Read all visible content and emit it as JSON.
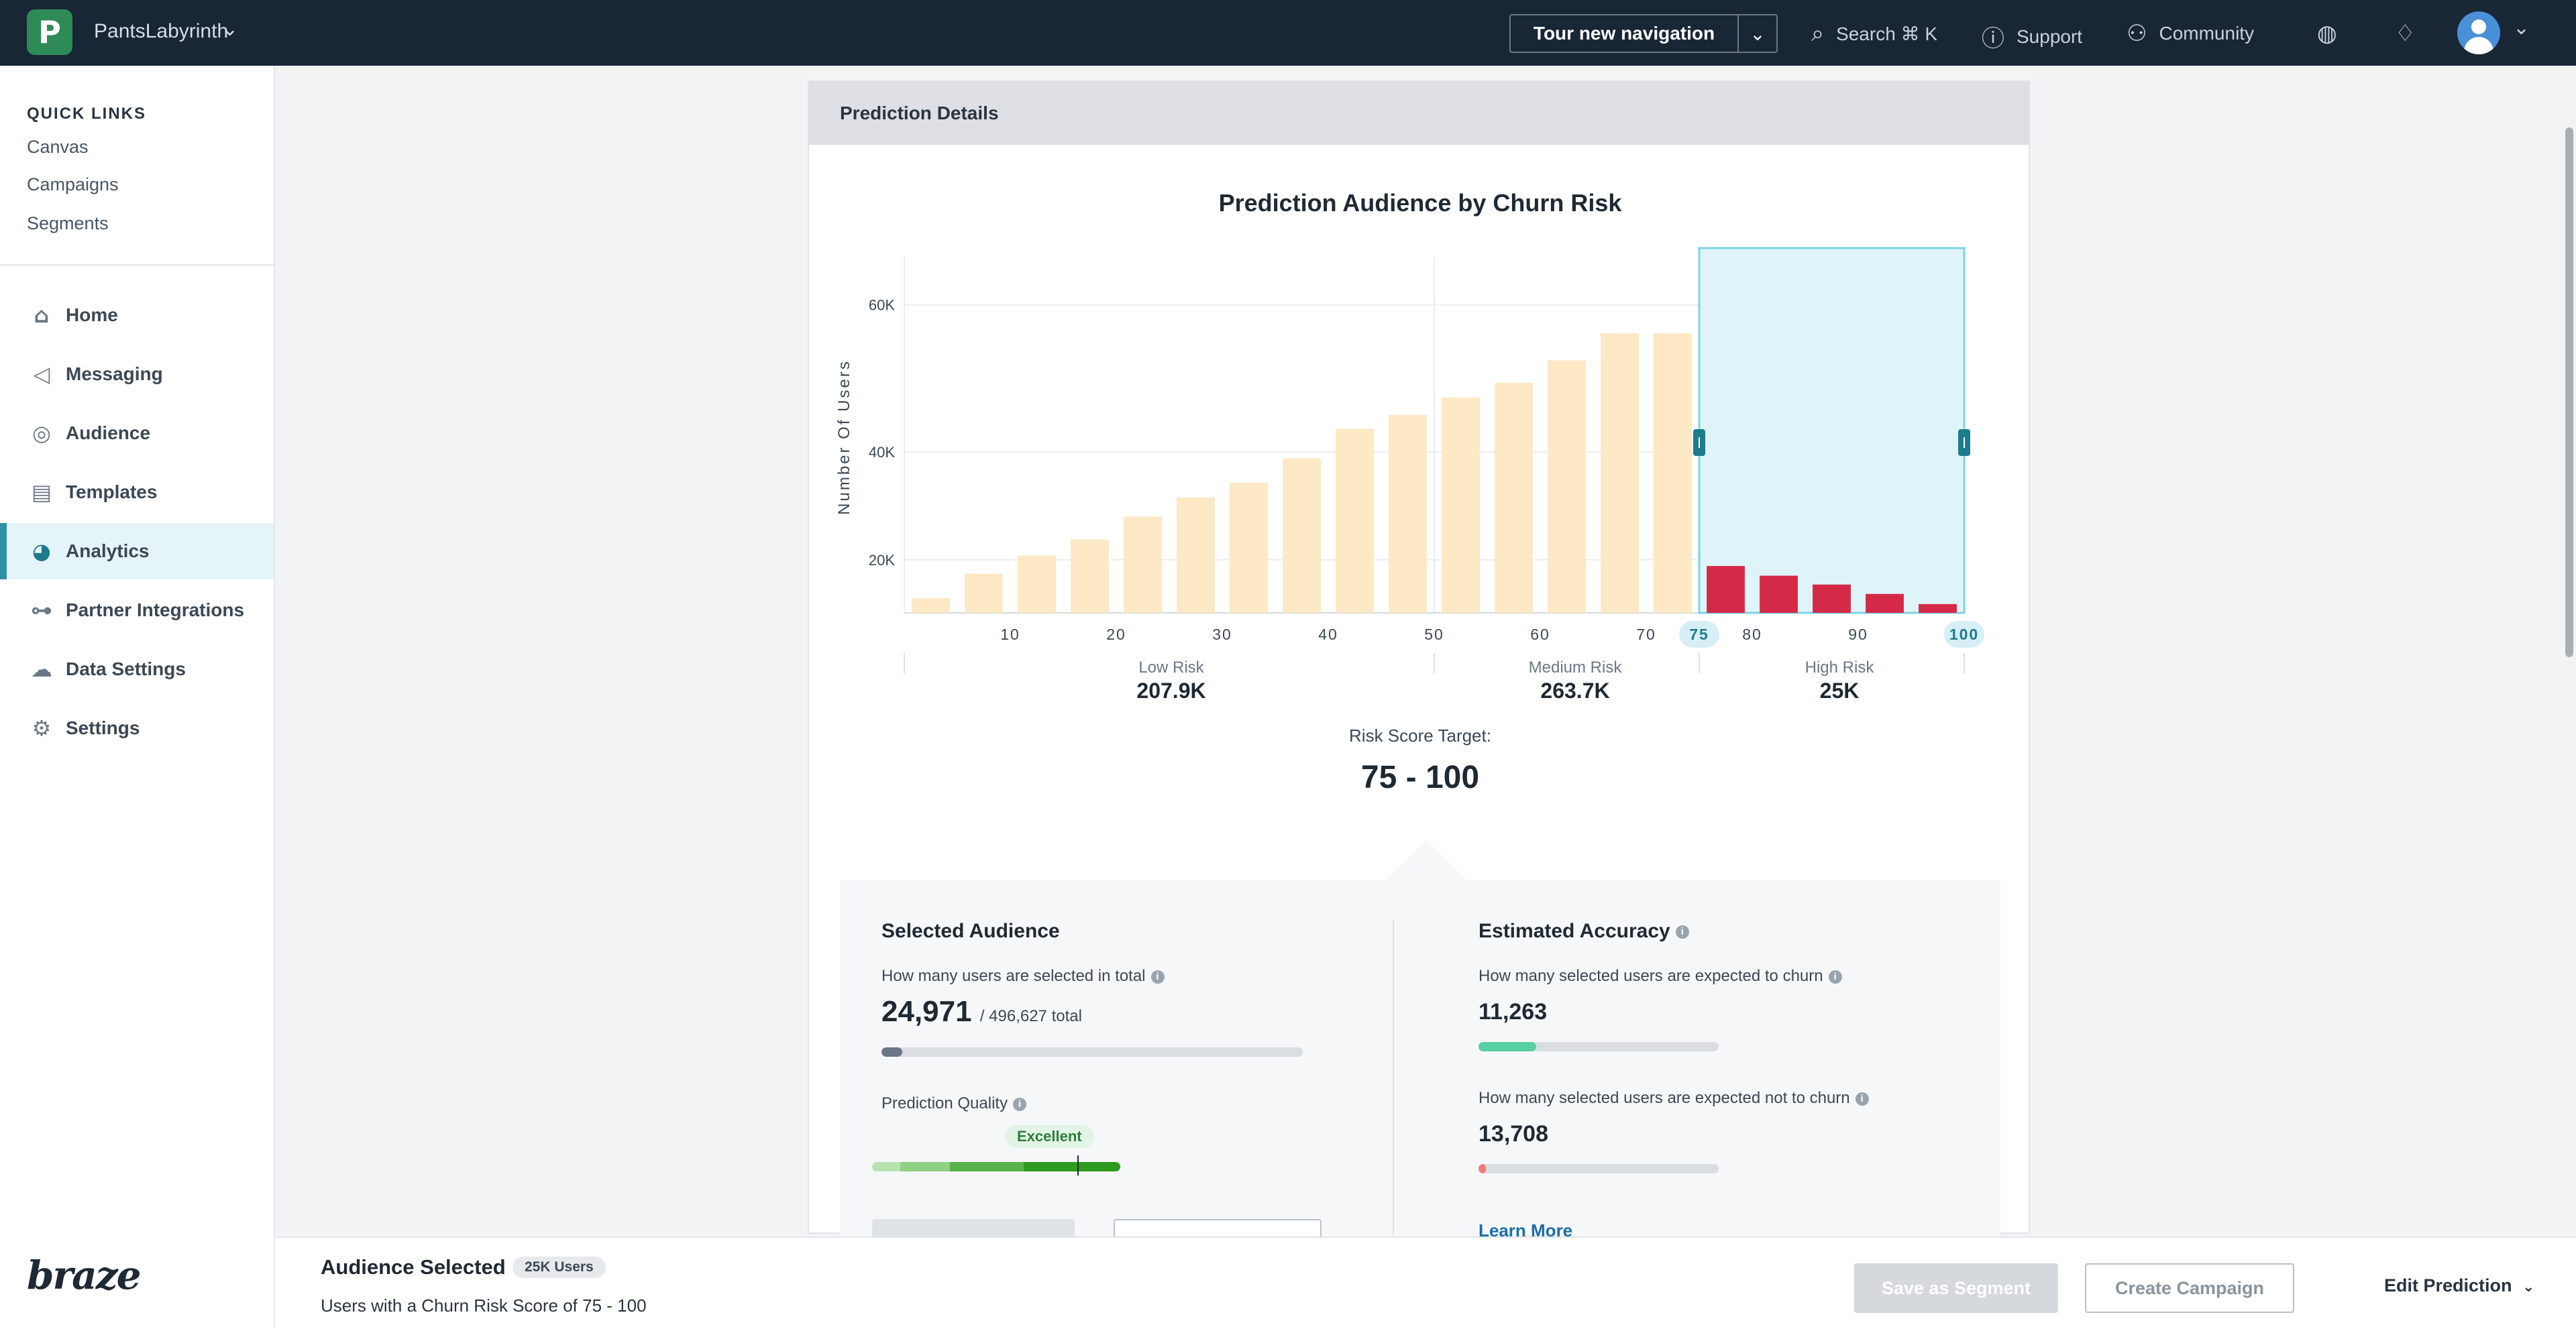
{
  "topnav": {
    "logo_letter": "P",
    "workspace": "PantsLabyrinth",
    "tour_label": "Tour new navigation",
    "search_label": "Search ⌘ K",
    "support_label": "Support",
    "community_label": "Community"
  },
  "sidebar": {
    "quick_links_title": "QUICK LINKS",
    "quick_links": [
      "Canvas",
      "Campaigns",
      "Segments"
    ],
    "items": [
      {
        "label": "Home",
        "icon": "home-icon"
      },
      {
        "label": "Messaging",
        "icon": "megaphone-icon"
      },
      {
        "label": "Audience",
        "icon": "audience-icon"
      },
      {
        "label": "Templates",
        "icon": "templates-icon"
      },
      {
        "label": "Analytics",
        "icon": "pie-chart-icon",
        "active": true
      },
      {
        "label": "Partner Integrations",
        "icon": "integrations-icon"
      },
      {
        "label": "Data Settings",
        "icon": "cloud-icon"
      },
      {
        "label": "Settings",
        "icon": "gear-icon"
      }
    ],
    "brand": "braze"
  },
  "card": {
    "header": "Prediction Details"
  },
  "chart_data": {
    "type": "bar",
    "title": "Prediction Audience by Churn Risk",
    "ylabel": "Number Of Users",
    "xlabel": "",
    "x_ticks": [
      "10",
      "20",
      "30",
      "40",
      "50",
      "60",
      "70",
      "75",
      "80",
      "90",
      "100"
    ],
    "y_ticks": [
      "20K",
      "40K",
      "60K"
    ],
    "ylim": [
      0,
      65000
    ],
    "bins": [
      5,
      10,
      15,
      20,
      25,
      30,
      35,
      40,
      45,
      50,
      55,
      60,
      65,
      70,
      75,
      80,
      85,
      90,
      95,
      100
    ],
    "values": [
      9000,
      16500,
      21000,
      24500,
      29000,
      32500,
      35000,
      39000,
      43500,
      45500,
      48000,
      50000,
      53000,
      56500,
      56500,
      18500,
      16000,
      13500,
      10500,
      6500
    ],
    "selected_range": [
      75,
      100
    ],
    "colors": {
      "unselected": "#fde9c5",
      "selected": "#d42a48",
      "selection_box": "#dff4f9",
      "selection_border": "#7fd3e3",
      "handle": "#1d7b8e"
    }
  },
  "risk_groups": [
    {
      "label": "Low Risk",
      "value": "207.9K"
    },
    {
      "label": "Medium Risk",
      "value": "263.7K"
    },
    {
      "label": "High Risk",
      "value": "25K"
    }
  ],
  "target": {
    "label": "Risk Score Target:",
    "value": "75 - 100"
  },
  "selected_audience": {
    "title": "Selected Audience",
    "question": "How many users are selected in total",
    "value": "24,971",
    "total": "/ 496,627 total",
    "fill": 0.05,
    "quality_label": "Prediction Quality",
    "quality_badge": "Excellent"
  },
  "estimated_accuracy": {
    "title": "Estimated Accuracy",
    "churn_question": "How many selected users are expected to churn",
    "churn_value": "11,263",
    "churn_fill": 0.24,
    "not_churn_question": "How many selected users are expected not to churn",
    "not_churn_value": "13,708",
    "not_churn_fill": 0.03,
    "learn_more": "Learn More"
  },
  "footer": {
    "title": "Audience Selected",
    "pill": "25K Users",
    "subtitle": "Users with a Churn Risk Score of 75 - 100",
    "save_label": "Save as Segment",
    "create_label": "Create Campaign",
    "edit_label": "Edit Prediction"
  }
}
